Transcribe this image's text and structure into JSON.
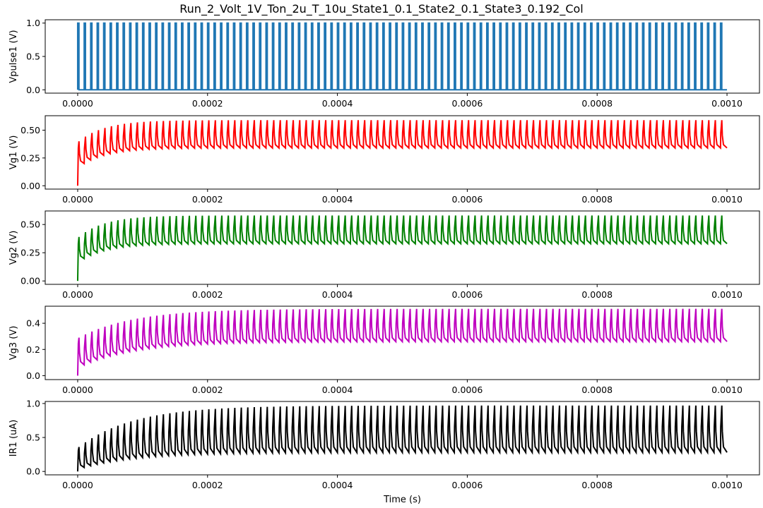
{
  "figure": {
    "title": "Run_2_Volt_1V_Ton_2u_T_10u_State1_0.1_State2_0.1_State3_0.192_Col",
    "xlabel": "Time (s)"
  },
  "chart_data": [
    {
      "type": "line",
      "ylabel": "Vpulse1 (V)",
      "color": "#1f77b4",
      "xlim": [
        -5e-05,
        0.00105
      ],
      "ylim": [
        -0.05,
        1.05
      ],
      "x_ticks": [
        "0.0000",
        "0.0002",
        "0.0004",
        "0.0006",
        "0.0008",
        "0.0010"
      ],
      "y_ticks": [
        "0.0",
        "0.5",
        "1.0"
      ],
      "series": [
        {
          "waveform": "pulse",
          "period": 1e-05,
          "t_on": 2e-06,
          "high": 1.0,
          "low": 0.0,
          "t_end": 0.001,
          "pulses": 100
        }
      ]
    },
    {
      "type": "line",
      "ylabel": "Vg1 (V)",
      "color": "#ff0000",
      "xlim": [
        -5e-05,
        0.00105
      ],
      "ylim": [
        -0.03,
        0.63
      ],
      "x_ticks": [
        "0.0000",
        "0.0002",
        "0.0004",
        "0.0006",
        "0.0008",
        "0.0010"
      ],
      "y_ticks": [
        "0.00",
        "0.25",
        "0.50"
      ],
      "series": [
        {
          "waveform": "rc_pulse_response",
          "start": 0.0,
          "first_peak": 0.4,
          "first_trough": 0.16,
          "steady_peak": 0.59,
          "steady_trough": 0.34,
          "end": 0.34,
          "settle_time": 0.00012
        }
      ]
    },
    {
      "type": "line",
      "ylabel": "Vg2 (V)",
      "color": "#008000",
      "xlim": [
        -5e-05,
        0.00105
      ],
      "ylim": [
        -0.03,
        0.62
      ],
      "x_ticks": [
        "0.0000",
        "0.0002",
        "0.0004",
        "0.0006",
        "0.0008",
        "0.0010"
      ],
      "y_ticks": [
        "0.00",
        "0.25",
        "0.50"
      ],
      "series": [
        {
          "waveform": "rc_pulse_response",
          "start": 0.0,
          "first_peak": 0.39,
          "first_trough": 0.16,
          "steady_peak": 0.58,
          "steady_trough": 0.33,
          "end": 0.33,
          "settle_time": 0.00012
        }
      ]
    },
    {
      "type": "line",
      "ylabel": "Vg3 (V)",
      "color": "#bf00bf",
      "xlim": [
        -5e-05,
        0.00105
      ],
      "ylim": [
        -0.03,
        0.53
      ],
      "x_ticks": [
        "0.0000",
        "0.0002",
        "0.0004",
        "0.0006",
        "0.0008",
        "0.0010"
      ],
      "y_ticks": [
        "0.0",
        "0.2",
        "0.4"
      ],
      "series": [
        {
          "waveform": "rc_pulse_response",
          "start": 0.0,
          "first_peak": 0.29,
          "first_trough": 0.06,
          "steady_peak": 0.51,
          "steady_trough": 0.26,
          "end": 0.26,
          "settle_time": 0.00025
        }
      ]
    },
    {
      "type": "line",
      "ylabel": "IR1 (uA)",
      "color": "#000000",
      "xlim": [
        -5e-05,
        0.00105
      ],
      "ylim": [
        -0.05,
        1.03
      ],
      "x_ticks": [
        "0.0000",
        "0.0002",
        "0.0004",
        "0.0006",
        "0.0008",
        "0.0010"
      ],
      "y_ticks": [
        "0.0",
        "0.5",
        "1.0"
      ],
      "series": [
        {
          "waveform": "rc_pulse_response",
          "start": 0.0,
          "first_peak": 0.36,
          "first_trough": 0.03,
          "steady_peak": 0.97,
          "steady_trough": 0.28,
          "end": 0.28,
          "settle_time": 0.00025
        }
      ]
    }
  ]
}
